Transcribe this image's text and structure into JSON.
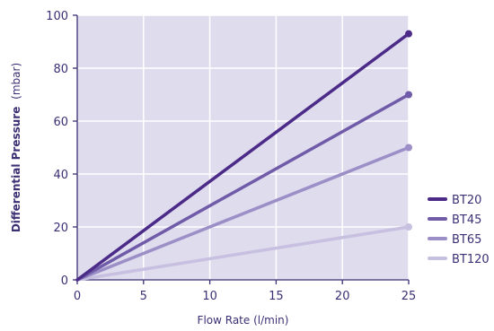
{
  "chart_data": {
    "type": "line",
    "xlabel": "Flow Rate (l/min)",
    "ylabel_bold": "Differential Pressure",
    "ylabel_unit": "(mbar)",
    "xlim": [
      0,
      25
    ],
    "ylim": [
      0,
      100
    ],
    "x_ticks": [
      0,
      5,
      10,
      15,
      20,
      25
    ],
    "y_ticks": [
      0,
      20,
      40,
      60,
      80,
      100
    ],
    "grid": true,
    "legend_position": "right",
    "colors": {
      "plot_background": "#dfdcee",
      "grid": "#ffffff",
      "axis": "#3c2f74",
      "text": "#3c2f74"
    },
    "series": [
      {
        "name": "BT20",
        "x": [
          0,
          25
        ],
        "y": [
          0,
          93
        ],
        "color": "#4b2a88"
      },
      {
        "name": "BT45",
        "x": [
          0,
          25
        ],
        "y": [
          0,
          70
        ],
        "color": "#6f5ba8"
      },
      {
        "name": "BT65",
        "x": [
          0,
          25
        ],
        "y": [
          0,
          50
        ],
        "color": "#9c8ec6"
      },
      {
        "name": "BT120",
        "x": [
          0,
          25
        ],
        "y": [
          0,
          20
        ],
        "color": "#c8c0e0"
      }
    ]
  }
}
